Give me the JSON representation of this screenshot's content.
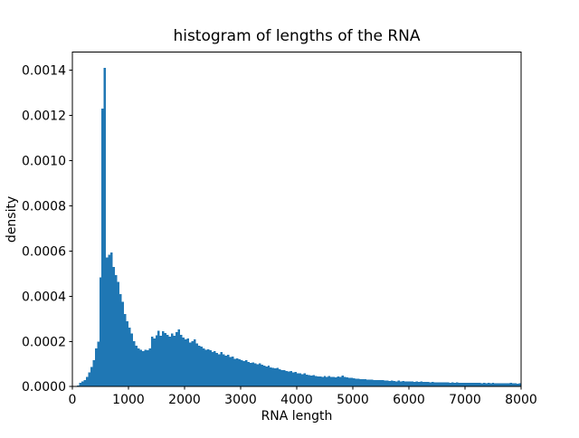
{
  "figure": {
    "title": "histogram of lengths of the RNA",
    "xlabel": "RNA length",
    "ylabel": "density"
  },
  "chart_data": {
    "type": "bar",
    "subtype": "histogram",
    "title": "histogram of lengths of the RNA",
    "xlabel": "RNA length",
    "ylabel": "density",
    "bar_color": "#1f77b4",
    "axis_color": "#000000",
    "background_color": "#ffffff",
    "grid": false,
    "legend": false,
    "xlim": [
      0,
      8000
    ],
    "ylim": [
      0,
      0.00148
    ],
    "x_ticks": [
      0,
      1000,
      2000,
      3000,
      4000,
      5000,
      6000,
      7000,
      8000
    ],
    "x_tick_labels": [
      "0",
      "1000",
      "2000",
      "3000",
      "4000",
      "5000",
      "6000",
      "7000",
      "8000"
    ],
    "y_ticks": [
      0,
      0.0002,
      0.0004,
      0.0006,
      0.0008,
      0.001,
      0.0012,
      0.0014
    ],
    "y_tick_labels": [
      "0.0000",
      "0.0002",
      "0.0004",
      "0.0006",
      "0.0008",
      "0.0010",
      "0.0012",
      "0.0014"
    ],
    "bin_start": 0,
    "bin_width": 40,
    "density_scale": 1e-06,
    "densities": [
      0,
      2,
      5,
      16,
      22,
      29,
      42,
      62,
      86,
      116,
      169,
      200,
      483,
      1230,
      1410,
      572,
      583,
      594,
      530,
      494,
      463,
      409,
      376,
      322,
      289,
      262,
      236,
      202,
      182,
      169,
      162,
      156,
      162,
      160,
      169,
      222,
      213,
      228,
      248,
      225,
      245,
      237,
      229,
      222,
      236,
      225,
      242,
      253,
      229,
      218,
      209,
      213,
      196,
      202,
      209,
      192,
      182,
      177,
      169,
      162,
      165,
      161,
      152,
      156,
      149,
      142,
      152,
      142,
      136,
      140,
      130,
      133,
      122,
      125,
      120,
      116,
      112,
      116,
      109,
      105,
      106,
      102,
      98,
      102,
      96,
      93,
      89,
      92,
      85,
      82,
      80,
      82,
      76,
      73,
      72,
      69,
      66,
      69,
      62,
      65,
      59,
      58,
      55,
      58,
      53,
      51,
      49,
      51,
      46,
      45,
      45,
      42,
      46,
      42,
      46,
      42,
      43,
      41,
      44,
      42,
      48,
      43,
      40,
      38,
      38,
      36,
      35,
      34,
      33,
      33,
      32,
      31,
      30,
      31,
      29,
      29,
      28,
      28,
      29,
      26,
      27,
      25,
      26,
      24,
      23,
      26,
      23,
      24,
      22,
      23,
      22,
      23,
      21,
      22,
      21,
      22,
      20,
      21,
      20,
      19,
      20,
      19,
      19,
      18,
      19,
      18,
      19,
      18,
      17,
      18,
      17,
      18,
      17,
      16,
      17,
      16,
      17,
      16,
      17,
      16,
      17,
      16,
      15,
      16,
      15,
      16,
      15,
      16,
      15,
      14,
      15,
      14,
      15,
      14,
      15,
      16,
      14,
      15,
      13,
      14
    ]
  }
}
